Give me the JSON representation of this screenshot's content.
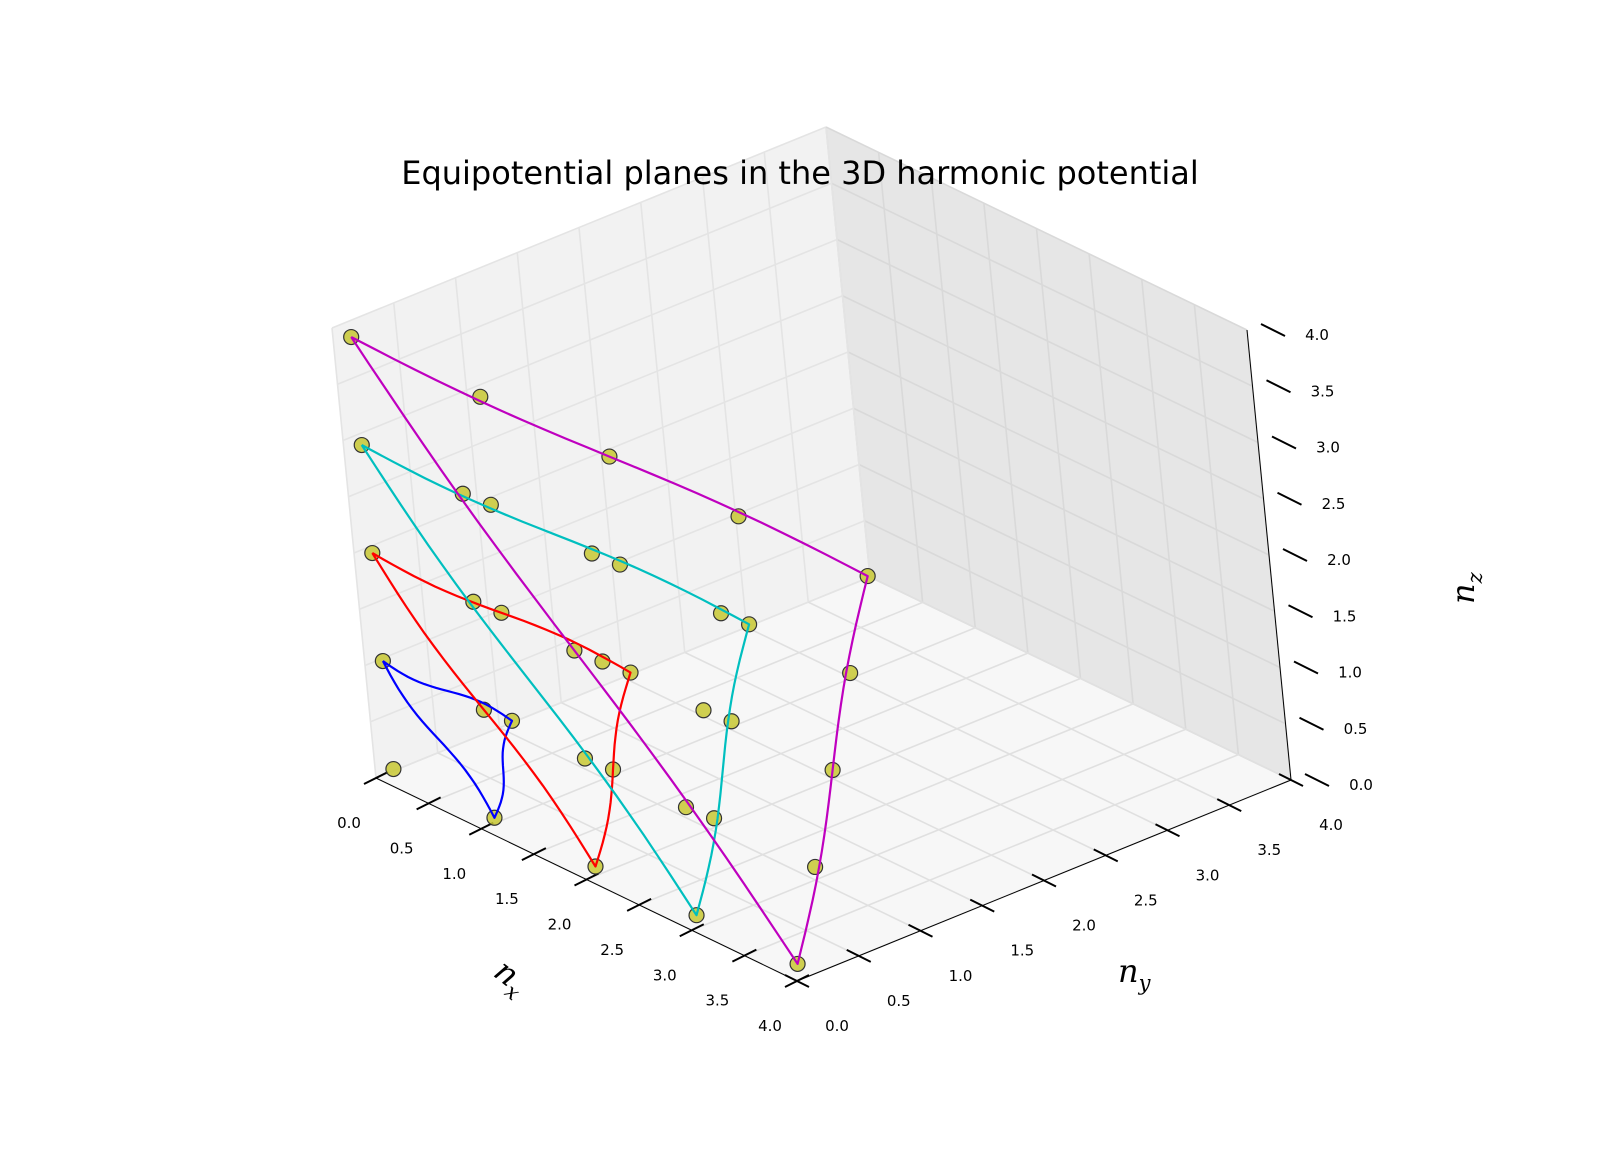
{
  "chart_data": {
    "type": "scatter",
    "title": "Equipotential planes in the 3D harmonic potential",
    "xlabel": "n",
    "xlabel_sub": "x",
    "ylabel": "n",
    "ylabel_sub": "y",
    "zlabel": "n",
    "zlabel_sub": "z",
    "xlim": [
      0,
      4
    ],
    "ylim": [
      0,
      4
    ],
    "zlim": [
      0,
      4
    ],
    "ticks": [
      "0.0",
      "0.5",
      "1.0",
      "1.5",
      "2.0",
      "2.5",
      "3.0",
      "3.5",
      "4.0"
    ],
    "grid": true,
    "view": "3d",
    "points": [
      [
        0,
        0,
        0
      ],
      [
        0,
        0,
        1
      ],
      [
        0,
        0,
        2
      ],
      [
        0,
        0,
        3
      ],
      [
        0,
        0,
        4
      ],
      [
        0,
        1,
        0
      ],
      [
        0,
        1,
        1
      ],
      [
        0,
        1,
        2
      ],
      [
        0,
        1,
        3
      ],
      [
        0,
        2,
        0
      ],
      [
        0,
        2,
        1
      ],
      [
        0,
        2,
        2
      ],
      [
        0,
        3,
        0
      ],
      [
        0,
        3,
        1
      ],
      [
        0,
        4,
        0
      ],
      [
        1,
        0,
        0
      ],
      [
        1,
        0,
        1
      ],
      [
        1,
        0,
        2
      ],
      [
        1,
        0,
        3
      ],
      [
        1,
        1,
        0
      ],
      [
        1,
        1,
        1
      ],
      [
        1,
        1,
        2
      ],
      [
        1,
        2,
        0
      ],
      [
        1,
        2,
        1
      ],
      [
        1,
        3,
        0
      ],
      [
        2,
        0,
        0
      ],
      [
        2,
        0,
        1
      ],
      [
        2,
        0,
        2
      ],
      [
        2,
        1,
        0
      ],
      [
        2,
        1,
        1
      ],
      [
        2,
        2,
        0
      ],
      [
        3,
        0,
        0
      ],
      [
        3,
        0,
        1
      ],
      [
        3,
        1,
        0
      ],
      [
        4,
        0,
        0
      ]
    ],
    "point_color": "#c8c832",
    "planes": [
      {
        "level": 1,
        "color": "#0000ff",
        "vertices": [
          [
            0,
            0,
            1
          ],
          [
            1,
            0,
            0
          ],
          [
            0,
            1,
            0
          ]
        ]
      },
      {
        "level": 2,
        "color": "#ff0000",
        "vertices": [
          [
            0,
            0,
            2
          ],
          [
            2,
            0,
            0
          ],
          [
            0,
            2,
            0
          ]
        ]
      },
      {
        "level": 3,
        "color": "#00bfbf",
        "vertices": [
          [
            0,
            0,
            3
          ],
          [
            3,
            0,
            0
          ],
          [
            0,
            3,
            0
          ]
        ]
      },
      {
        "level": 4,
        "color": "#bf00bf",
        "vertices": [
          [
            0,
            0,
            4
          ],
          [
            4,
            0,
            0
          ],
          [
            0,
            4,
            0
          ]
        ]
      }
    ]
  }
}
